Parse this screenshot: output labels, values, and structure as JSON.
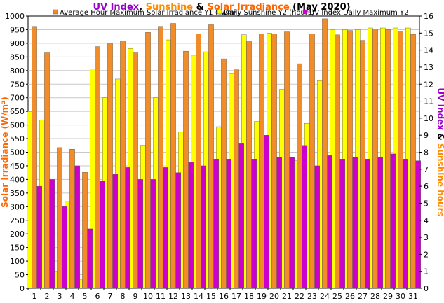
{
  "chart_data": {
    "type": "bar",
    "title_parts": [
      {
        "text": "UV Index",
        "color": "#9900cc"
      },
      {
        "text": ", ",
        "color": "#000000"
      },
      {
        "text": "Sunshine",
        "color": "#ff8c00"
      },
      {
        "text": " & ",
        "color": "#000000"
      },
      {
        "text": "Solar Irradiance",
        "color": "#ff6600"
      },
      {
        "text": " (May 2020)",
        "color": "#000000"
      }
    ],
    "ylabel_left": "Solar Irradiance (W/m²)",
    "ylabel_left_color": "#ff6600",
    "ylabel_right_parts": [
      {
        "text": "UV Index",
        "color": "#9900cc"
      },
      {
        "text": " & ",
        "color": "#000000"
      },
      {
        "text": "Sunshine hours",
        "color": "#ff8c00"
      }
    ],
    "y_left_range": [
      0,
      1000
    ],
    "y_left_ticks": [
      "0",
      "50",
      "100",
      "150",
      "200",
      "250",
      "300",
      "350",
      "400",
      "450",
      "500",
      "550",
      "600",
      "650",
      "700",
      "750",
      "800",
      "850",
      "900",
      "950",
      "1000"
    ],
    "y_right_range": [
      0,
      16
    ],
    "y_right_ticks": [
      "0",
      "1",
      "2",
      "3",
      "4",
      "5",
      "6",
      "7",
      "8",
      "9",
      "10",
      "11",
      "12",
      "13",
      "14",
      "15",
      "16"
    ],
    "categories": [
      "1",
      "2",
      "3",
      "4",
      "5",
      "6",
      "7",
      "8",
      "9",
      "10",
      "11",
      "12",
      "13",
      "14",
      "15",
      "16",
      "17",
      "18",
      "19",
      "20",
      "21",
      "22",
      "23",
      "24",
      "25",
      "26",
      "27",
      "28",
      "29",
      "30",
      "31"
    ],
    "legend_position": "top",
    "series": [
      {
        "name": "Average Hour Maximum Solar Irradiance Y1 (W/m²)",
        "axis": "left",
        "color": "#f28c28",
        "values": [
          962,
          865,
          517,
          511,
          426,
          888,
          900,
          908,
          865,
          940,
          962,
          973,
          871,
          935,
          968,
          843,
          803,
          908,
          935,
          935,
          942,
          825,
          935,
          990,
          931,
          947,
          911,
          952,
          950,
          945,
          933
        ]
      },
      {
        "name": "Daily Sunshine Y2 (hours)",
        "axis": "right",
        "color": "#ffff00",
        "values": [
          10.4,
          9.9,
          1.0,
          5.1,
          0.5,
          12.9,
          11.2,
          12.3,
          14.1,
          8.4,
          11.2,
          14.6,
          9.2,
          13.7,
          13.9,
          9.5,
          12.6,
          14.9,
          9.8,
          15.0,
          11.7,
          7.5,
          9.7,
          12.2,
          15.2,
          15.2,
          15.2,
          15.3,
          15.3,
          15.3,
          15.3
        ]
      },
      {
        "name": "UV Index Daily Maximum Y2",
        "axis": "right",
        "color": "#cc00cc",
        "values": [
          6.0,
          6.4,
          4.8,
          7.2,
          3.5,
          6.3,
          6.7,
          7.1,
          6.4,
          6.4,
          7.1,
          6.8,
          7.4,
          7.2,
          7.6,
          7.6,
          8.5,
          7.6,
          9.0,
          7.7,
          7.7,
          8.4,
          7.2,
          7.8,
          7.6,
          7.7,
          7.6,
          7.7,
          7.9,
          7.6,
          7.5
        ]
      }
    ]
  }
}
